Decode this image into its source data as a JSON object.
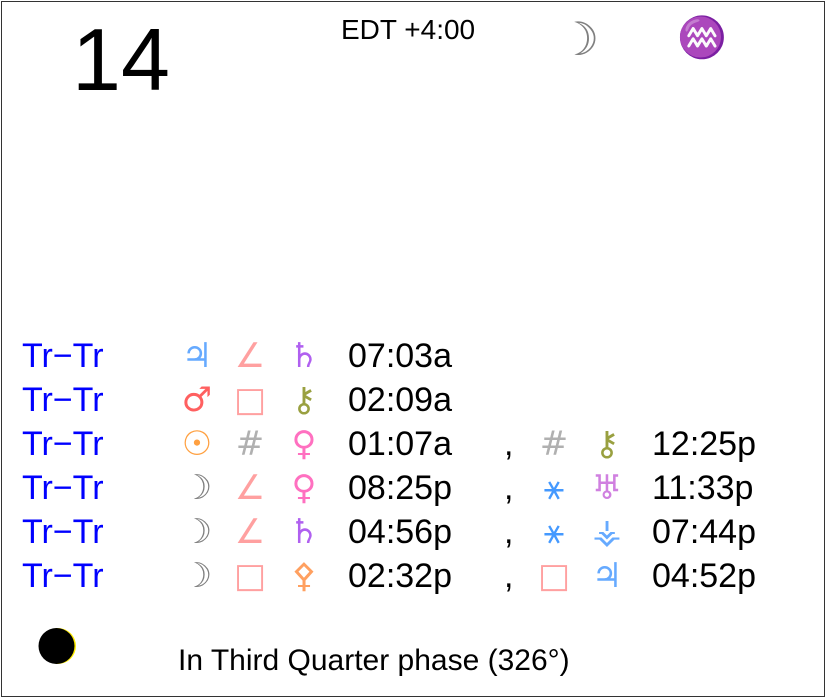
{
  "header": {
    "day": "14",
    "timezone": "EDT +4:00",
    "moon_glyph": "☽",
    "moon_color": "#808080",
    "sign_glyph": "♒",
    "sign_color": "#ff80ff"
  },
  "aspects": [
    {
      "label": "Tr−Tr",
      "p1": {
        "g": "♃",
        "c": "#66aaff"
      },
      "asp": {
        "g": "∠",
        "c": "#ffa0a0"
      },
      "p2": {
        "g": "♄",
        "c": "#b060f0"
      },
      "time": "07:03a"
    },
    {
      "label": "Tr−Tr",
      "p1": {
        "g": "♂",
        "c": "#ff6060"
      },
      "asp": {
        "g": "□",
        "c": "#ffa0a0"
      },
      "p2": {
        "g": "⚷",
        "c": "#99a040"
      },
      "time": "02:09a"
    },
    {
      "label": "Tr−Tr",
      "p1": {
        "g": "☉",
        "c": "#ffa040"
      },
      "asp": {
        "g": "#",
        "c": "#b0b0b0"
      },
      "p2": {
        "g": "♀",
        "c": "#ff70c0"
      },
      "time": "01:07a",
      "sep": ",",
      "asp2": {
        "g": "#",
        "c": "#b0b0b0"
      },
      "p3": {
        "g": "⚷",
        "c": "#99a040"
      },
      "time2": "12:25p"
    },
    {
      "label": "Tr−Tr",
      "p1": {
        "g": "☽",
        "c": "#808080"
      },
      "asp": {
        "g": "∠",
        "c": "#ffa0a0"
      },
      "p2": {
        "g": "♀",
        "c": "#ff70c0"
      },
      "time": "08:25p",
      "sep": ",",
      "asp2": {
        "g": "⚹",
        "c": "#4499ff"
      },
      "p3": {
        "g": "♅",
        "c": "#d080e0"
      },
      "time2": "11:33p"
    },
    {
      "label": "Tr−Tr",
      "p1": {
        "g": "☽",
        "c": "#808080"
      },
      "asp": {
        "g": "∠",
        "c": "#ffa0a0"
      },
      "p2": {
        "g": "♄",
        "c": "#b060f0"
      },
      "time": "04:56p",
      "sep": ",",
      "asp2": {
        "g": "⚹",
        "c": "#4499ff"
      },
      "p3": {
        "g": "⚶",
        "c": "#66aaff"
      },
      "time2": "07:44p"
    },
    {
      "label": "Tr−Tr",
      "p1": {
        "g": "☽",
        "c": "#808080"
      },
      "asp": {
        "g": "□",
        "c": "#ffa0a0"
      },
      "p2": {
        "g": "⚴",
        "c": "#ffa060"
      },
      "time": "02:32p",
      "sep": ",",
      "asp2": {
        "g": "□",
        "c": "#ffa0a0"
      },
      "p3": {
        "g": "♃",
        "c": "#66aaff"
      },
      "time2": "04:52p"
    }
  ],
  "footer": {
    "phase_text": "In Third Quarter phase (326°)",
    "phase_icon": "waning-crescent-moon-icon"
  }
}
